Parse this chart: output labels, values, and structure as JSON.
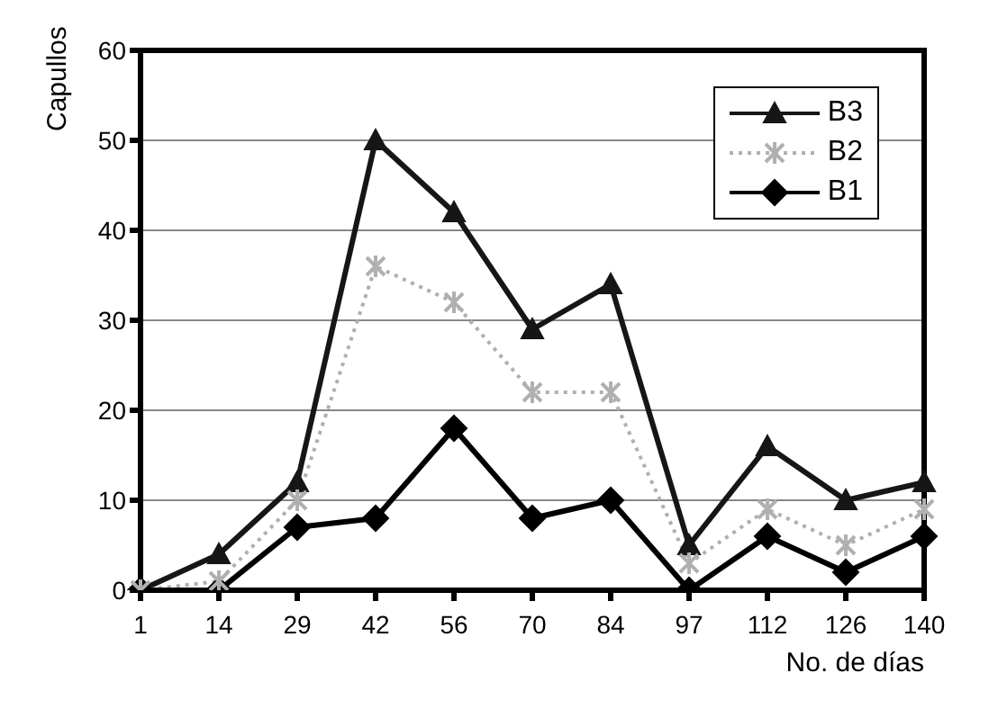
{
  "chart_data": {
    "type": "line",
    "xlabel": "No. de días",
    "ylabel": "Capullos",
    "categories": [
      "1",
      "14",
      "29",
      "42",
      "56",
      "70",
      "84",
      "97",
      "112",
      "126",
      "140"
    ],
    "series": [
      {
        "name": "B3",
        "color": "#161616",
        "marker": "triangle",
        "line_style": "solid",
        "values": [
          0,
          4,
          12,
          50,
          42,
          29,
          34,
          5,
          16,
          10,
          12
        ]
      },
      {
        "name": "B2",
        "color": "#b0b0b0",
        "marker": "cross",
        "line_style": "dotted",
        "values": [
          0,
          1,
          10,
          36,
          32,
          22,
          22,
          3,
          9,
          5,
          9
        ]
      },
      {
        "name": "B1",
        "color": "#000000",
        "marker": "diamond",
        "line_style": "solid",
        "values": [
          0,
          0,
          7,
          8,
          18,
          8,
          10,
          0,
          6,
          2,
          6
        ]
      }
    ],
    "ylim": [
      0,
      60
    ],
    "yticks": [
      0,
      10,
      20,
      30,
      40,
      50,
      60
    ],
    "grid": "y",
    "legend": "top right"
  }
}
